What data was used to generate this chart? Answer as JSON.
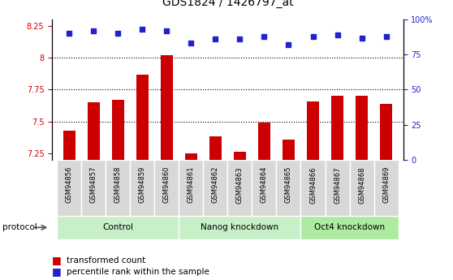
{
  "title": "GDS1824 / 1426797_at",
  "samples": [
    "GSM94856",
    "GSM94857",
    "GSM94858",
    "GSM94859",
    "GSM94860",
    "GSM94861",
    "GSM94862",
    "GSM94863",
    "GSM94864",
    "GSM94865",
    "GSM94866",
    "GSM94867",
    "GSM94868",
    "GSM94869"
  ],
  "transformed_count": [
    7.43,
    7.65,
    7.67,
    7.87,
    8.02,
    7.25,
    7.38,
    7.26,
    7.49,
    7.36,
    7.66,
    7.7,
    7.7,
    7.64
  ],
  "percentile_rank": [
    90,
    92,
    90,
    93,
    92,
    83,
    86,
    86,
    88,
    82,
    88,
    89,
    87,
    88
  ],
  "group_bounds": [
    [
      0,
      4,
      "#c8f0c8",
      "Control"
    ],
    [
      5,
      9,
      "#c8f0c8",
      "Nanog knockdown"
    ],
    [
      10,
      13,
      "#adeba0",
      "Oct4 knockdown"
    ]
  ],
  "ylim_left": [
    7.2,
    8.3
  ],
  "ylim_right": [
    0,
    100
  ],
  "yticks_left": [
    7.25,
    7.5,
    7.75,
    8.0,
    8.25
  ],
  "ytick_labels_left": [
    "7.25",
    "7.5",
    "7.75",
    "8",
    "8.25"
  ],
  "yticks_right": [
    0,
    25,
    50,
    75,
    100
  ],
  "ytick_labels_right": [
    "0",
    "25",
    "50",
    "75",
    "100%"
  ],
  "hgrid_lines": [
    7.5,
    7.75,
    8.0
  ],
  "bar_color": "#cc0000",
  "dot_color": "#2222cc",
  "bar_width": 0.5,
  "dot_size": 5,
  "cell_color": "#d8d8d8",
  "cell_edge_color": "#ffffff",
  "title_fontsize": 10,
  "tick_fontsize": 7,
  "legend_fontsize": 7.5,
  "group_fontsize": 7.5,
  "protocol_fontsize": 7.5,
  "sample_fontsize": 6
}
